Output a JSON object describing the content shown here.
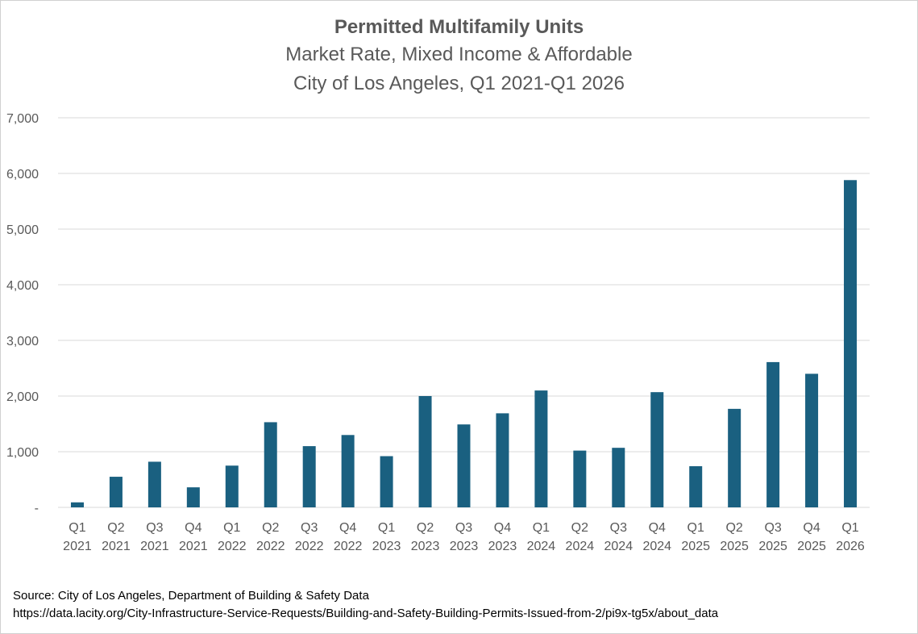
{
  "title": "Permitted Multifamily Units",
  "subtitle_line1": "Market Rate, Mixed Income & Affordable",
  "subtitle_line2": "City of Los Angeles, Q1 2021-Q1 2026",
  "source_line1": "Source: City of Los Angeles, Department of Building & Safety Data",
  "source_line2": "https://data.lacity.org/City-Infrastructure-Service-Requests/Building-and-Safety-Building-Permits-Issued-from-2/pi9x-tg5x/about_data",
  "colors": {
    "bar": "#1a6080",
    "grid": "#d9d9d9",
    "text": "#595959"
  },
  "chart_data": {
    "type": "bar",
    "title": "Permitted Multifamily Units",
    "subtitle": "Market Rate, Mixed Income & Affordable / City of Los Angeles, Q1 2021-Q1 2026",
    "xlabel": "",
    "ylabel": "",
    "ylim": [
      0,
      7000
    ],
    "yticks": [
      0,
      1000,
      2000,
      3000,
      4000,
      5000,
      6000,
      7000
    ],
    "ytick_labels": [
      "-",
      "1,000",
      "2,000",
      "3,000",
      "4,000",
      "5,000",
      "6,000",
      "7,000"
    ],
    "grid": true,
    "legend": "none",
    "categories": [
      [
        "Q1",
        "2021"
      ],
      [
        "Q2",
        "2021"
      ],
      [
        "Q3",
        "2021"
      ],
      [
        "Q4",
        "2021"
      ],
      [
        "Q1",
        "2022"
      ],
      [
        "Q2",
        "2022"
      ],
      [
        "Q3",
        "2022"
      ],
      [
        "Q4",
        "2022"
      ],
      [
        "Q1",
        "2023"
      ],
      [
        "Q2",
        "2023"
      ],
      [
        "Q3",
        "2023"
      ],
      [
        "Q4",
        "2023"
      ],
      [
        "Q1",
        "2024"
      ],
      [
        "Q2",
        "2024"
      ],
      [
        "Q3",
        "2024"
      ],
      [
        "Q4",
        "2024"
      ],
      [
        "Q1",
        "2025"
      ],
      [
        "Q2",
        "2025"
      ],
      [
        "Q3",
        "2025"
      ],
      [
        "Q4",
        "2025"
      ],
      [
        "Q1",
        "2026"
      ]
    ],
    "values": [
      90,
      550,
      820,
      360,
      750,
      1530,
      1100,
      1300,
      920,
      2000,
      1490,
      1690,
      2100,
      1020,
      1070,
      2070,
      740,
      1770,
      2610,
      2400,
      5880
    ]
  }
}
